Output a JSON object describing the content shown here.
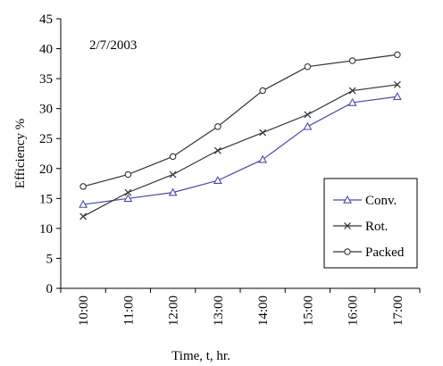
{
  "chart_data": {
    "type": "line",
    "annotation": "2/7/2003",
    "xlabel": "Time, t, hr.",
    "ylabel": "Efficiency %",
    "categories": [
      "10:00",
      "11:00",
      "12:00",
      "13:00",
      "14:00",
      "15:00",
      "16:00",
      "17:00"
    ],
    "ylim": [
      0,
      45
    ],
    "yticks": [
      "0",
      "5",
      "10",
      "15",
      "20",
      "25",
      "30",
      "35",
      "40",
      "45"
    ],
    "grid": false,
    "legend_position": "bottom-right",
    "series": [
      {
        "name": "Conv.",
        "marker": "triangle",
        "color": "#4a4aa8",
        "values": [
          14,
          15,
          16,
          18,
          21.5,
          27,
          31,
          32
        ]
      },
      {
        "name": "Rot.",
        "marker": "x",
        "color": "#333333",
        "values": [
          12,
          16,
          19,
          23,
          26,
          29,
          33,
          34
        ]
      },
      {
        "name": "Packed",
        "marker": "circle",
        "color": "#333333",
        "values": [
          17,
          19,
          22,
          27,
          33,
          37,
          38,
          39
        ]
      }
    ]
  }
}
